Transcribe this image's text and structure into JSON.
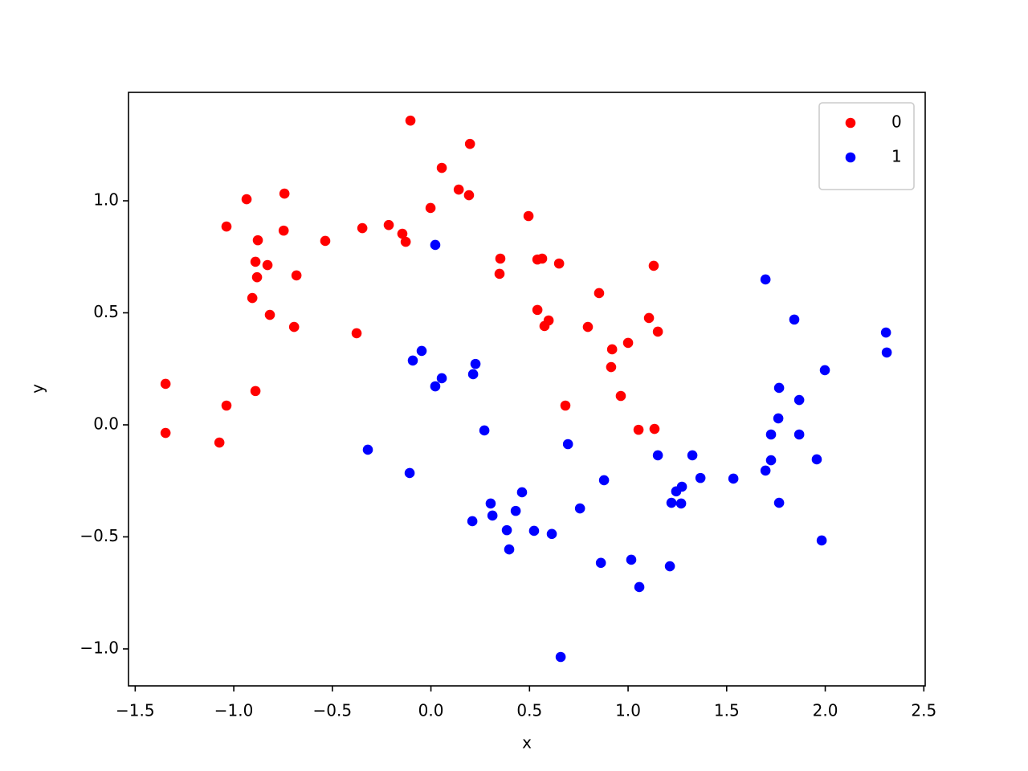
{
  "chart_data": {
    "type": "scatter",
    "x_label": "x",
    "y_label": "y",
    "xlim": [
      -1.534,
      2.507
    ],
    "ylim": [
      -1.165,
      1.484
    ],
    "xticks": [
      {
        "value": -1.5,
        "label": "−1.5"
      },
      {
        "value": -1.0,
        "label": "−1.0"
      },
      {
        "value": -0.5,
        "label": "−0.5"
      },
      {
        "value": 0.0,
        "label": "0.0"
      },
      0.5,
      {
        "value": 1.0,
        "label": "1.0"
      },
      1.5,
      {
        "value": 2.0,
        "label": "2.0"
      },
      2.5
    ],
    "yticks": [
      {
        "value": -1.0,
        "label": "−1.0"
      },
      {
        "value": -0.5,
        "label": "−0.5"
      },
      {
        "value": 0.0,
        "label": "0.0"
      },
      0.5,
      {
        "value": 1.0,
        "label": "1.0"
      }
    ],
    "legend": "upper right",
    "series": [
      {
        "name": "0",
        "color": "#ff0000",
        "x": [
          -1.346,
          -1.346,
          -1.073,
          -1.037,
          -1.037,
          -0.935,
          -0.89,
          -0.906,
          -0.882,
          -0.89,
          -0.878,
          -0.829,
          -0.817,
          -0.747,
          -0.743,
          -0.694,
          -0.682,
          -0.536,
          -0.377,
          -0.348,
          -0.214,
          -0.145,
          -0.128,
          -0.104,
          -0.002,
          0.055,
          0.141,
          0.193,
          0.198,
          0.348,
          0.352,
          0.495,
          0.54,
          0.54,
          0.564,
          0.576,
          0.597,
          0.65,
          0.682,
          0.796,
          0.853,
          0.914,
          0.919,
          0.963,
          1.0,
          1.053,
          1.106,
          1.13,
          1.134,
          1.151
        ],
        "y": [
          0.183,
          -0.036,
          -0.079,
          0.086,
          0.885,
          1.007,
          0.151,
          0.566,
          0.659,
          0.728,
          0.824,
          0.713,
          0.491,
          0.867,
          1.032,
          0.437,
          0.667,
          0.821,
          0.409,
          0.878,
          0.892,
          0.853,
          0.817,
          1.358,
          0.968,
          1.147,
          1.05,
          1.025,
          1.254,
          0.674,
          0.742,
          0.932,
          0.513,
          0.738,
          0.742,
          0.441,
          0.466,
          0.72,
          0.086,
          0.437,
          0.588,
          0.258,
          0.337,
          0.129,
          0.366,
          -0.022,
          0.477,
          0.71,
          -0.018,
          0.416
        ]
      },
      {
        "name": "1",
        "color": "#0000ff",
        "x": [
          -0.32,
          -0.108,
          -0.092,
          -0.047,
          0.022,
          0.022,
          0.055,
          0.21,
          0.214,
          0.226,
          0.271,
          0.303,
          0.312,
          0.385,
          0.397,
          0.43,
          0.462,
          0.523,
          0.613,
          0.658,
          0.695,
          0.756,
          0.862,
          0.878,
          1.016,
          1.057,
          1.151,
          1.212,
          1.22,
          1.244,
          1.269,
          1.273,
          1.326,
          1.367,
          1.534,
          1.697,
          1.697,
          1.725,
          1.725,
          1.762,
          1.766,
          1.766,
          1.843,
          1.868,
          1.868,
          1.957,
          1.982,
          1.998,
          2.308,
          2.312
        ],
        "y": [
          -0.111,
          -0.215,
          0.287,
          0.33,
          0.803,
          0.172,
          0.208,
          -0.43,
          0.226,
          0.272,
          -0.025,
          -0.351,
          -0.405,
          -0.47,
          -0.556,
          -0.384,
          -0.301,
          -0.473,
          -0.487,
          -1.036,
          -0.086,
          -0.373,
          -0.616,
          -0.247,
          -0.602,
          -0.724,
          -0.136,
          -0.631,
          -0.348,
          -0.297,
          -0.351,
          -0.276,
          -0.136,
          -0.237,
          -0.24,
          -0.204,
          0.649,
          -0.158,
          -0.043,
          0.029,
          0.165,
          -0.348,
          0.47,
          0.111,
          -0.043,
          -0.154,
          -0.516,
          0.244,
          0.412,
          0.323
        ]
      }
    ]
  }
}
